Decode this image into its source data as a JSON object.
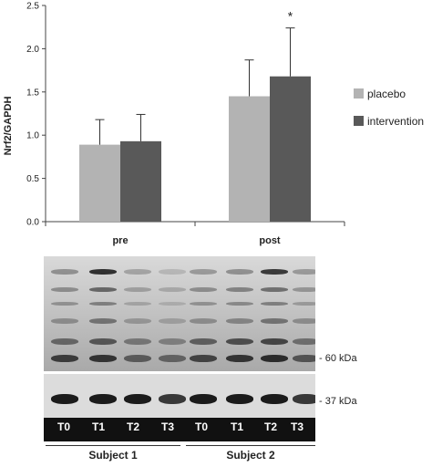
{
  "chart_data": {
    "type": "bar",
    "categories": [
      "pre",
      "post"
    ],
    "series": [
      {
        "name": "placebo",
        "values": [
          0.89,
          1.45
        ],
        "errors": [
          0.29,
          0.42
        ],
        "color": "#b3b3b3"
      },
      {
        "name": "intervention",
        "values": [
          0.93,
          1.68
        ],
        "errors": [
          0.31,
          0.56
        ],
        "color": "#595959"
      }
    ],
    "ylabel": "Nrf2/GAPDH",
    "ylim": [
      0,
      2.5
    ],
    "yticks": [
      "0.0",
      "0.5",
      "1.0",
      "1.5",
      "2.0",
      "2.5"
    ],
    "grid": false,
    "legend_position": "right",
    "annotations": [
      {
        "category": "post",
        "series": "intervention",
        "text": "*"
      }
    ]
  },
  "blot": {
    "markers": [
      "- 60 kDa",
      "- 37 kDa"
    ],
    "lanes": [
      "T0",
      "T1",
      "T2",
      "T3",
      "T0",
      "T1",
      "T2",
      "T3"
    ],
    "subjects": [
      "Subject 1",
      "Subject 2"
    ]
  }
}
